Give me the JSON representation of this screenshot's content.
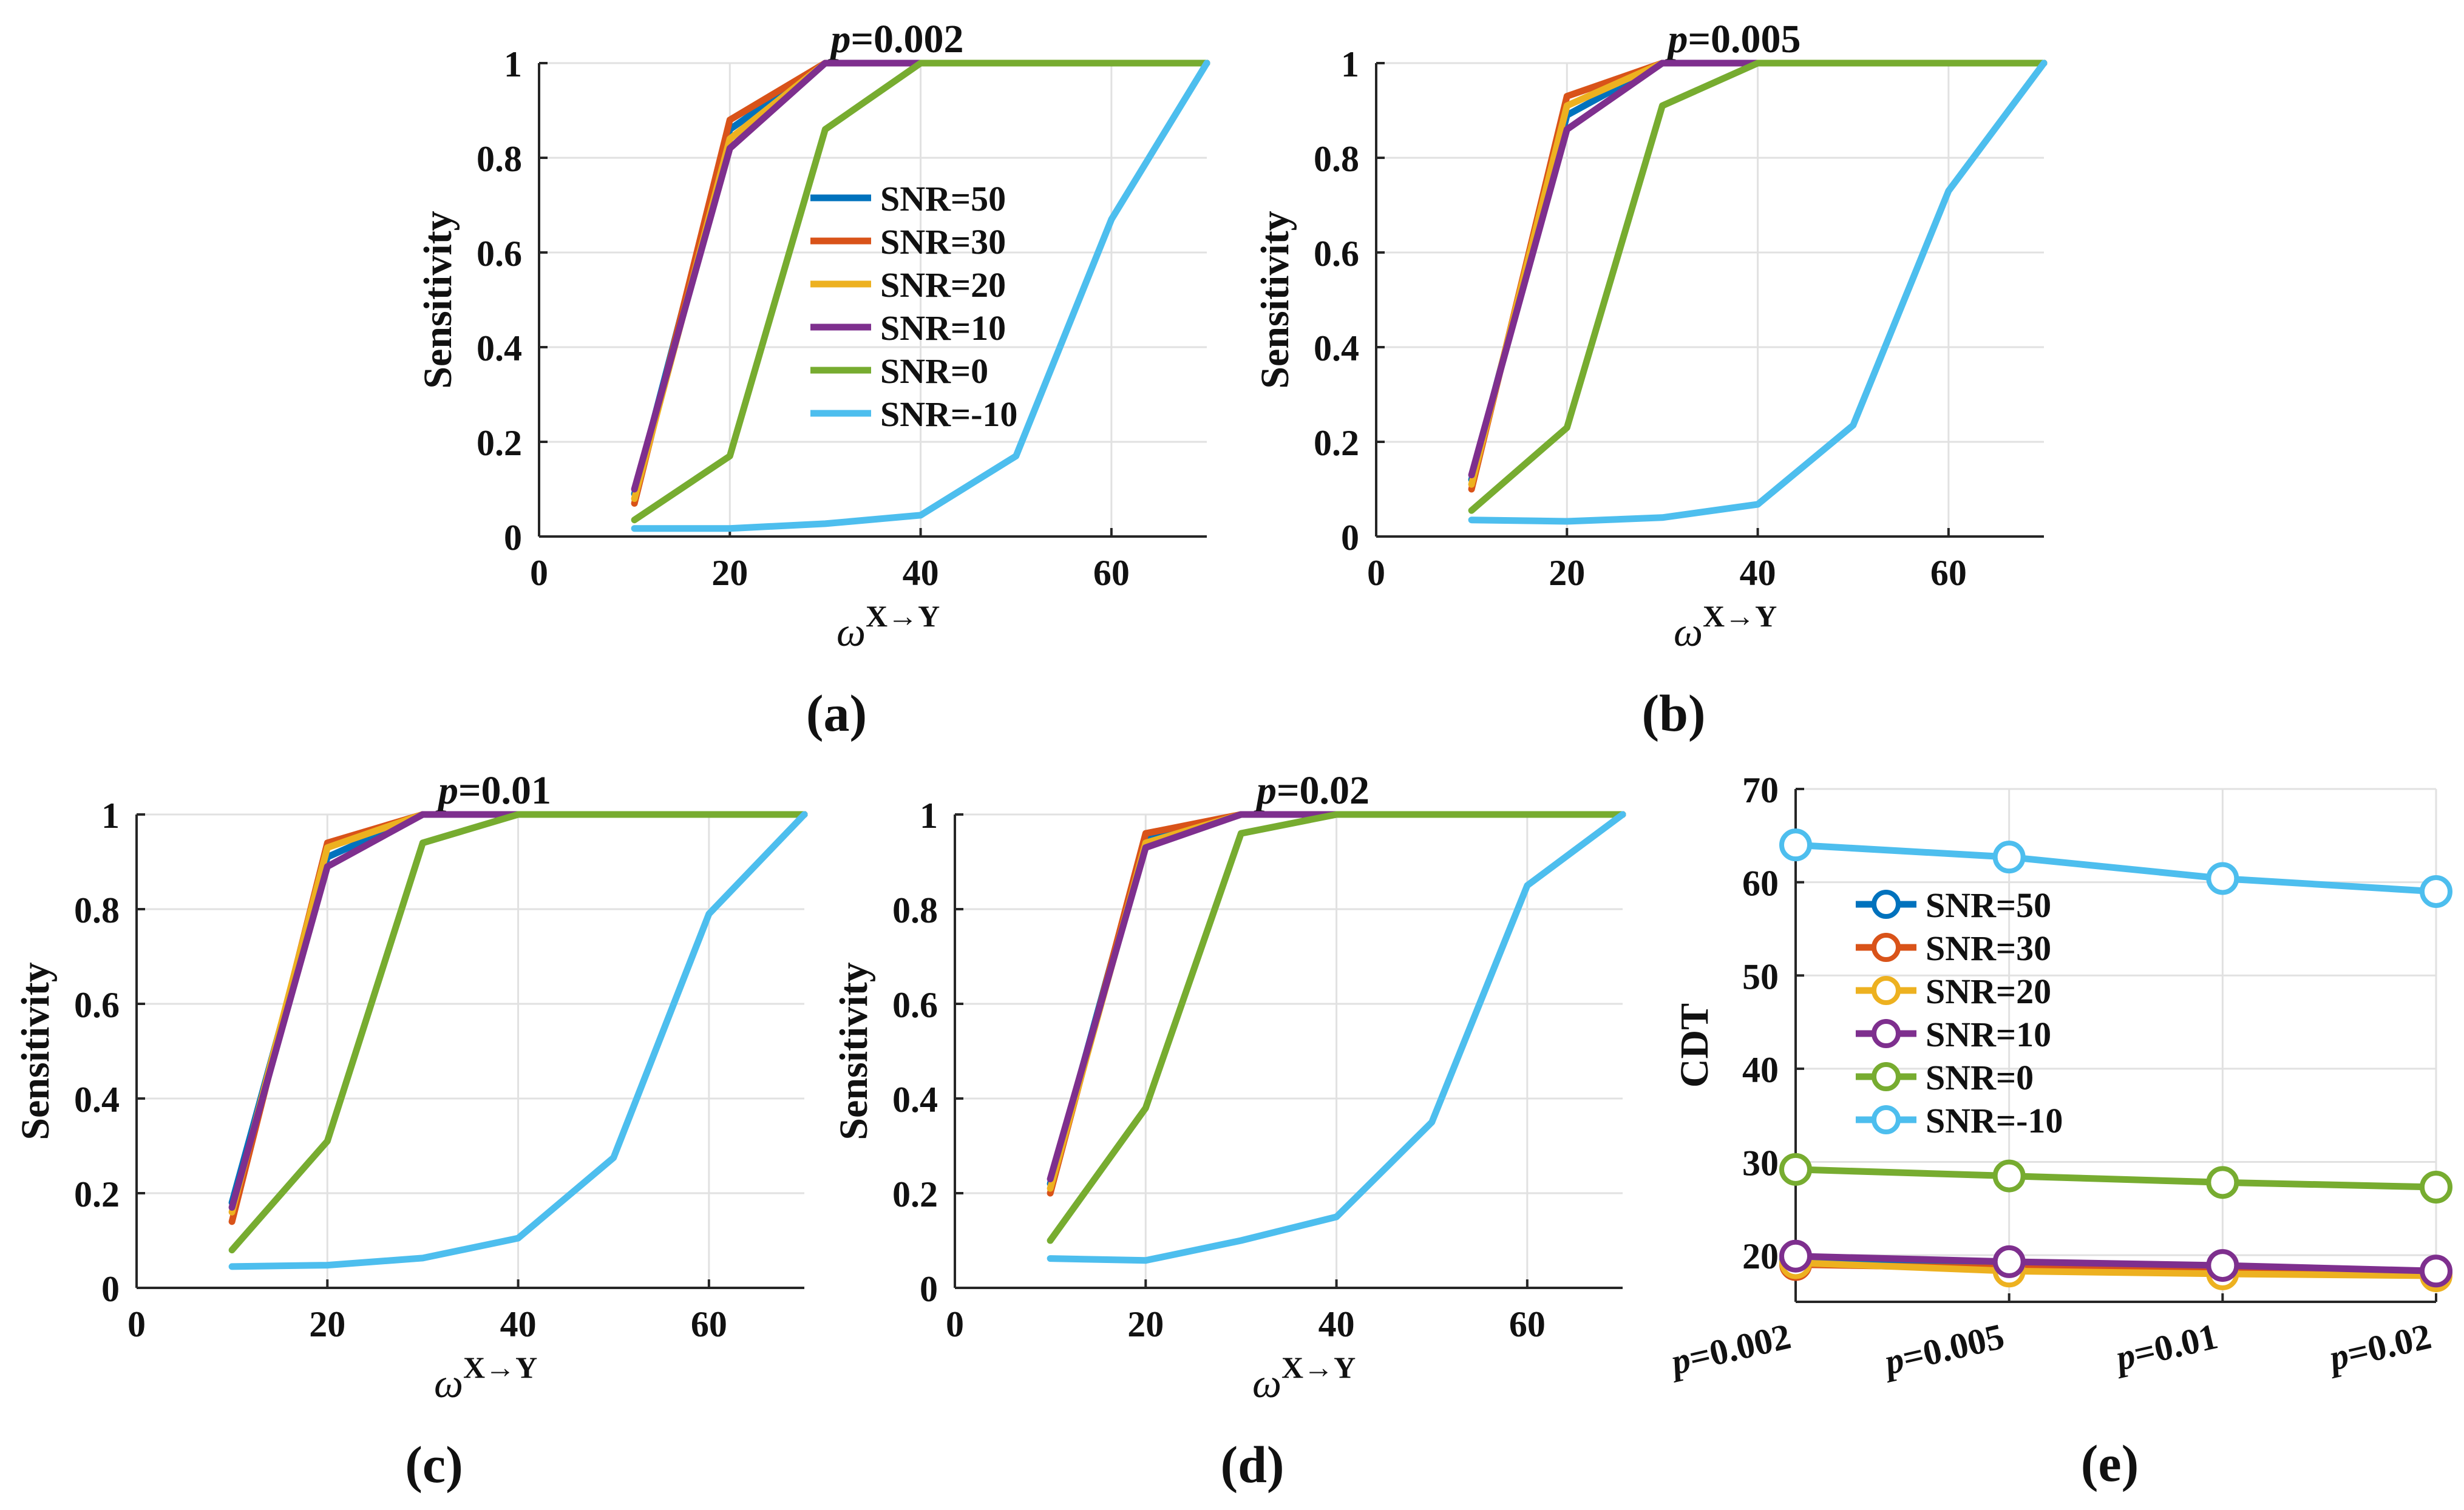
{
  "figure": {
    "colors": {
      "snr50": "#0072BD",
      "snr30": "#D95319",
      "snr20": "#EDB120",
      "snr10": "#7E2F8E",
      "snr0": "#77AC30",
      "snrm10": "#4DBEEE",
      "grid": "#e1e1e1",
      "axis": "#262626"
    }
  },
  "chart_data": [
    {
      "id": "a",
      "panel_label": "(a)",
      "type": "line",
      "title": "=0.002",
      "title_var": "p",
      "xlabel_base": "ω",
      "xlabel_sup": "X→Y",
      "ylabel": "Sensitivity",
      "xlim": [
        0,
        70
      ],
      "ylim": [
        0,
        1
      ],
      "xticks": [
        0,
        20,
        40,
        60
      ],
      "xtick_labels": [
        "0",
        "20",
        "40",
        "60"
      ],
      "yticks": [
        0,
        0.2,
        0.4,
        0.6,
        0.8,
        1
      ],
      "ytick_labels": [
        "0",
        "0.2",
        "0.4",
        "0.6",
        "0.8",
        "1"
      ],
      "grid": true,
      "legend": "center",
      "x": [
        10,
        20,
        30,
        40,
        50,
        60,
        70
      ],
      "series": [
        {
          "name": "SNR=50",
          "color": "#0072BD",
          "values": [
            0.09,
            0.86,
            1,
            1,
            1,
            1,
            1
          ]
        },
        {
          "name": "SNR=30",
          "color": "#D95319",
          "values": [
            0.07,
            0.88,
            1,
            1,
            1,
            1,
            1
          ]
        },
        {
          "name": "SNR=20",
          "color": "#EDB120",
          "values": [
            0.08,
            0.84,
            1,
            1,
            1,
            1,
            1
          ]
        },
        {
          "name": "SNR=10",
          "color": "#7E2F8E",
          "values": [
            0.1,
            0.82,
            1,
            1,
            1,
            1,
            1
          ]
        },
        {
          "name": "SNR=0",
          "color": "#77AC30",
          "values": [
            0.035,
            0.17,
            0.86,
            1,
            1,
            1,
            1
          ]
        },
        {
          "name": "SNR=-10",
          "color": "#4DBEEE",
          "values": [
            0.017,
            0.017,
            0.027,
            0.045,
            0.17,
            0.67,
            1
          ]
        }
      ]
    },
    {
      "id": "b",
      "panel_label": "(b)",
      "type": "line",
      "title": "=0.005",
      "title_var": "p",
      "xlabel_base": "ω",
      "xlabel_sup": "X→Y",
      "ylabel": "Sensitivity",
      "xlim": [
        0,
        70
      ],
      "ylim": [
        0,
        1
      ],
      "xticks": [
        0,
        20,
        40,
        60
      ],
      "xtick_labels": [
        "0",
        "20",
        "40",
        "60"
      ],
      "yticks": [
        0,
        0.2,
        0.4,
        0.6,
        0.8,
        1
      ],
      "ytick_labels": [
        "0",
        "0.2",
        "0.4",
        "0.6",
        "0.8",
        "1"
      ],
      "grid": true,
      "legend": "none",
      "x": [
        10,
        20,
        30,
        40,
        50,
        60,
        70
      ],
      "series": [
        {
          "name": "SNR=50",
          "color": "#0072BD",
          "values": [
            0.12,
            0.89,
            1,
            1,
            1,
            1,
            1
          ]
        },
        {
          "name": "SNR=30",
          "color": "#D95319",
          "values": [
            0.1,
            0.93,
            1,
            1,
            1,
            1,
            1
          ]
        },
        {
          "name": "SNR=20",
          "color": "#EDB120",
          "values": [
            0.11,
            0.91,
            1,
            1,
            1,
            1,
            1
          ]
        },
        {
          "name": "SNR=10",
          "color": "#7E2F8E",
          "values": [
            0.13,
            0.86,
            1,
            1,
            1,
            1,
            1
          ]
        },
        {
          "name": "SNR=0",
          "color": "#77AC30",
          "values": [
            0.055,
            0.23,
            0.91,
            1,
            1,
            1,
            1
          ]
        },
        {
          "name": "SNR=-10",
          "color": "#4DBEEE",
          "values": [
            0.035,
            0.032,
            0.04,
            0.068,
            0.235,
            0.73,
            1
          ]
        }
      ]
    },
    {
      "id": "c",
      "panel_label": "(c)",
      "type": "line",
      "title": "=0.01",
      "title_var": "p",
      "xlabel_base": "ω",
      "xlabel_sup": "X→Y",
      "ylabel": "Sensitivity",
      "xlim": [
        0,
        70
      ],
      "ylim": [
        0,
        1
      ],
      "xticks": [
        0,
        20,
        40,
        60
      ],
      "xtick_labels": [
        "0",
        "20",
        "40",
        "60"
      ],
      "yticks": [
        0,
        0.2,
        0.4,
        0.6,
        0.8,
        1
      ],
      "ytick_labels": [
        "0",
        "0.2",
        "0.4",
        "0.6",
        "0.8",
        "1"
      ],
      "grid": true,
      "legend": "none",
      "x": [
        10,
        20,
        30,
        40,
        50,
        60,
        70
      ],
      "series": [
        {
          "name": "SNR=50",
          "color": "#0072BD",
          "values": [
            0.18,
            0.91,
            1,
            1,
            1,
            1,
            1
          ]
        },
        {
          "name": "SNR=30",
          "color": "#D95319",
          "values": [
            0.14,
            0.94,
            1,
            1,
            1,
            1,
            1
          ]
        },
        {
          "name": "SNR=20",
          "color": "#EDB120",
          "values": [
            0.16,
            0.93,
            1,
            1,
            1,
            1,
            1
          ]
        },
        {
          "name": "SNR=10",
          "color": "#7E2F8E",
          "values": [
            0.17,
            0.89,
            1,
            1,
            1,
            1,
            1
          ]
        },
        {
          "name": "SNR=0",
          "color": "#77AC30",
          "values": [
            0.08,
            0.31,
            0.94,
            1,
            1,
            1,
            1
          ]
        },
        {
          "name": "SNR=-10",
          "color": "#4DBEEE",
          "values": [
            0.045,
            0.048,
            0.063,
            0.105,
            0.275,
            0.79,
            1
          ]
        }
      ]
    },
    {
      "id": "d",
      "panel_label": "(d)",
      "type": "line",
      "title": "=0.02",
      "title_var": "p",
      "xlabel_base": "ω",
      "xlabel_sup": "X→Y",
      "ylabel": "Sensitivity",
      "xlim": [
        0,
        70
      ],
      "ylim": [
        0,
        1
      ],
      "xticks": [
        0,
        20,
        40,
        60
      ],
      "xtick_labels": [
        "0",
        "20",
        "40",
        "60"
      ],
      "yticks": [
        0,
        0.2,
        0.4,
        0.6,
        0.8,
        1
      ],
      "ytick_labels": [
        "0",
        "0.2",
        "0.4",
        "0.6",
        "0.8",
        "1"
      ],
      "grid": true,
      "legend": "none",
      "x": [
        10,
        20,
        30,
        40,
        50,
        60,
        70
      ],
      "series": [
        {
          "name": "SNR=50",
          "color": "#0072BD",
          "values": [
            0.22,
            0.95,
            1,
            1,
            1,
            1,
            1
          ]
        },
        {
          "name": "SNR=30",
          "color": "#D95319",
          "values": [
            0.2,
            0.96,
            1,
            1,
            1,
            1,
            1
          ]
        },
        {
          "name": "SNR=20",
          "color": "#EDB120",
          "values": [
            0.21,
            0.94,
            1,
            1,
            1,
            1,
            1
          ]
        },
        {
          "name": "SNR=10",
          "color": "#7E2F8E",
          "values": [
            0.23,
            0.93,
            1,
            1,
            1,
            1,
            1
          ]
        },
        {
          "name": "SNR=0",
          "color": "#77AC30",
          "values": [
            0.1,
            0.38,
            0.96,
            1,
            1,
            1,
            1
          ]
        },
        {
          "name": "SNR=-10",
          "color": "#4DBEEE",
          "values": [
            0.062,
            0.058,
            0.1,
            0.15,
            0.35,
            0.85,
            1
          ]
        }
      ]
    },
    {
      "id": "e",
      "panel_label": "(e)",
      "type": "line",
      "title": "",
      "xlabel_base": "",
      "xlabel_sup": "",
      "ylabel": "CDT",
      "ylim": [
        15,
        70
      ],
      "yticks": [
        20,
        30,
        40,
        50,
        60,
        70
      ],
      "ytick_labels": [
        "20",
        "30",
        "40",
        "50",
        "60",
        "70"
      ],
      "categories": [
        "=0.002",
        "=0.005",
        "=0.01",
        "=0.02"
      ],
      "category_var": "p",
      "grid": true,
      "legend": "top-left",
      "markers": "circle",
      "series": [
        {
          "name": "SNR=50",
          "color": "#0072BD",
          "values": [
            19.5,
            19.0,
            18.6,
            18.2
          ]
        },
        {
          "name": "SNR=30",
          "color": "#D95319",
          "values": [
            19.0,
            18.6,
            18.3,
            17.9
          ]
        },
        {
          "name": "SNR=20",
          "color": "#EDB120",
          "values": [
            19.2,
            18.3,
            18.0,
            17.8
          ]
        },
        {
          "name": "SNR=10",
          "color": "#7E2F8E",
          "values": [
            19.9,
            19.3,
            18.9,
            18.3
          ]
        },
        {
          "name": "SNR=0",
          "color": "#77AC30",
          "values": [
            29.2,
            28.5,
            27.8,
            27.3
          ]
        },
        {
          "name": "SNR=-10",
          "color": "#4DBEEE",
          "values": [
            64.0,
            62.7,
            60.4,
            59.0
          ]
        }
      ]
    }
  ]
}
